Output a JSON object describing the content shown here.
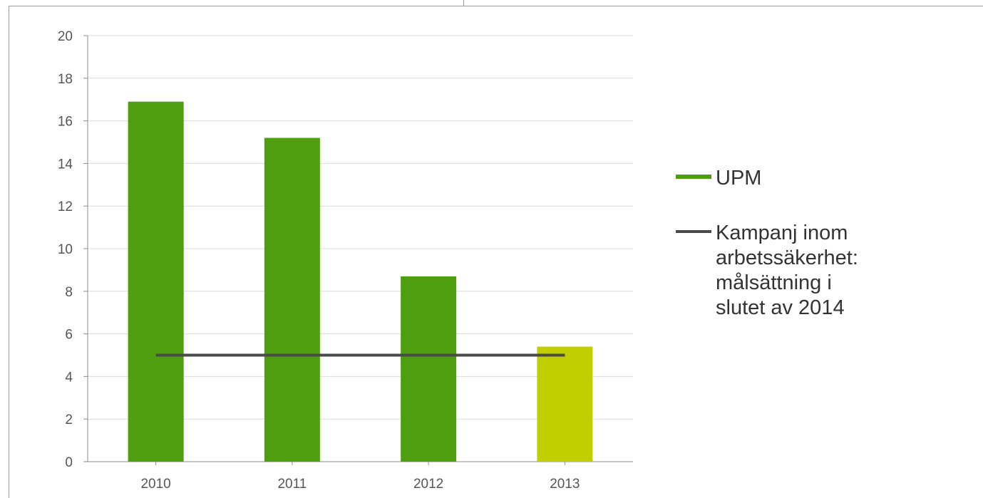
{
  "chart_data": {
    "type": "bar",
    "categories": [
      "2010",
      "2011",
      "2012",
      "2013"
    ],
    "series": [
      {
        "name": "UPM",
        "values": [
          16.9,
          15.2,
          8.7,
          5.4
        ],
        "colors": [
          "#4f9e0f",
          "#4f9e0f",
          "#4f9e0f",
          "#c1cf00"
        ]
      }
    ],
    "target_line": {
      "name": "Kampanj inom arbetssäkerhet: målsättning i slutet av 2014",
      "value": 5,
      "color": "#4a4a4a",
      "from": "2010",
      "to": "2013"
    },
    "ylim": [
      0,
      20
    ],
    "yticks": [
      0,
      2,
      4,
      6,
      8,
      10,
      12,
      14,
      16,
      18,
      20
    ],
    "grid": true,
    "legend": {
      "placement": "right",
      "items": [
        {
          "label_lines": [
            "UPM"
          ],
          "color": "#4f9e0f",
          "kind": "bar"
        },
        {
          "label_lines": [
            "Kampanj inom",
            "arbetssäkerhet:",
            "målsättning i",
            "slutet av 2014"
          ],
          "color": "#4a4a4a",
          "kind": "line"
        }
      ]
    }
  }
}
